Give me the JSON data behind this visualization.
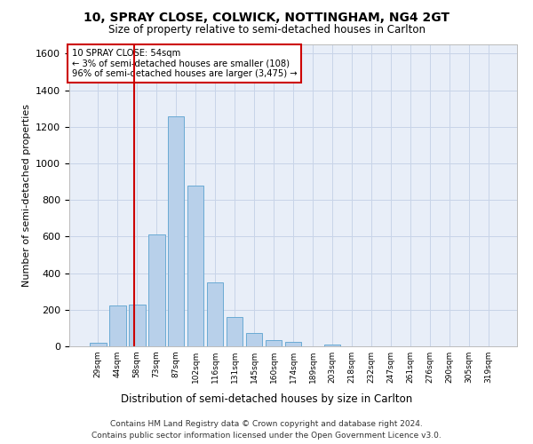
{
  "title": "10, SPRAY CLOSE, COLWICK, NOTTINGHAM, NG4 2GT",
  "subtitle": "Size of property relative to semi-detached houses in Carlton",
  "xlabel": "Distribution of semi-detached houses by size in Carlton",
  "ylabel": "Number of semi-detached properties",
  "footer_line1": "Contains HM Land Registry data © Crown copyright and database right 2024.",
  "footer_line2": "Contains public sector information licensed under the Open Government Licence v3.0.",
  "bar_labels": [
    "29sqm",
    "44sqm",
    "58sqm",
    "73sqm",
    "87sqm",
    "102sqm",
    "116sqm",
    "131sqm",
    "145sqm",
    "160sqm",
    "174sqm",
    "189sqm",
    "203sqm",
    "218sqm",
    "232sqm",
    "247sqm",
    "261sqm",
    "276sqm",
    "290sqm",
    "305sqm",
    "319sqm"
  ],
  "bar_values": [
    20,
    225,
    230,
    610,
    1255,
    880,
    350,
    158,
    75,
    35,
    22,
    0,
    12,
    0,
    0,
    0,
    0,
    0,
    0,
    0,
    0
  ],
  "bar_color": "#b8d0ea",
  "bar_edge_color": "#6aaad4",
  "grid_color": "#c8d4e8",
  "background_color": "#e8eef8",
  "vline_color": "#cc0000",
  "annotation_line1": "10 SPRAY CLOSE: 54sqm",
  "annotation_line2": "← 3% of semi-detached houses are smaller (108)",
  "annotation_line3": "96% of semi-detached houses are larger (3,475) →",
  "annotation_box_color": "#cc0000",
  "ylim": [
    0,
    1650
  ],
  "yticks": [
    0,
    200,
    400,
    600,
    800,
    1000,
    1200,
    1400,
    1600
  ],
  "vline_position": 1.85
}
